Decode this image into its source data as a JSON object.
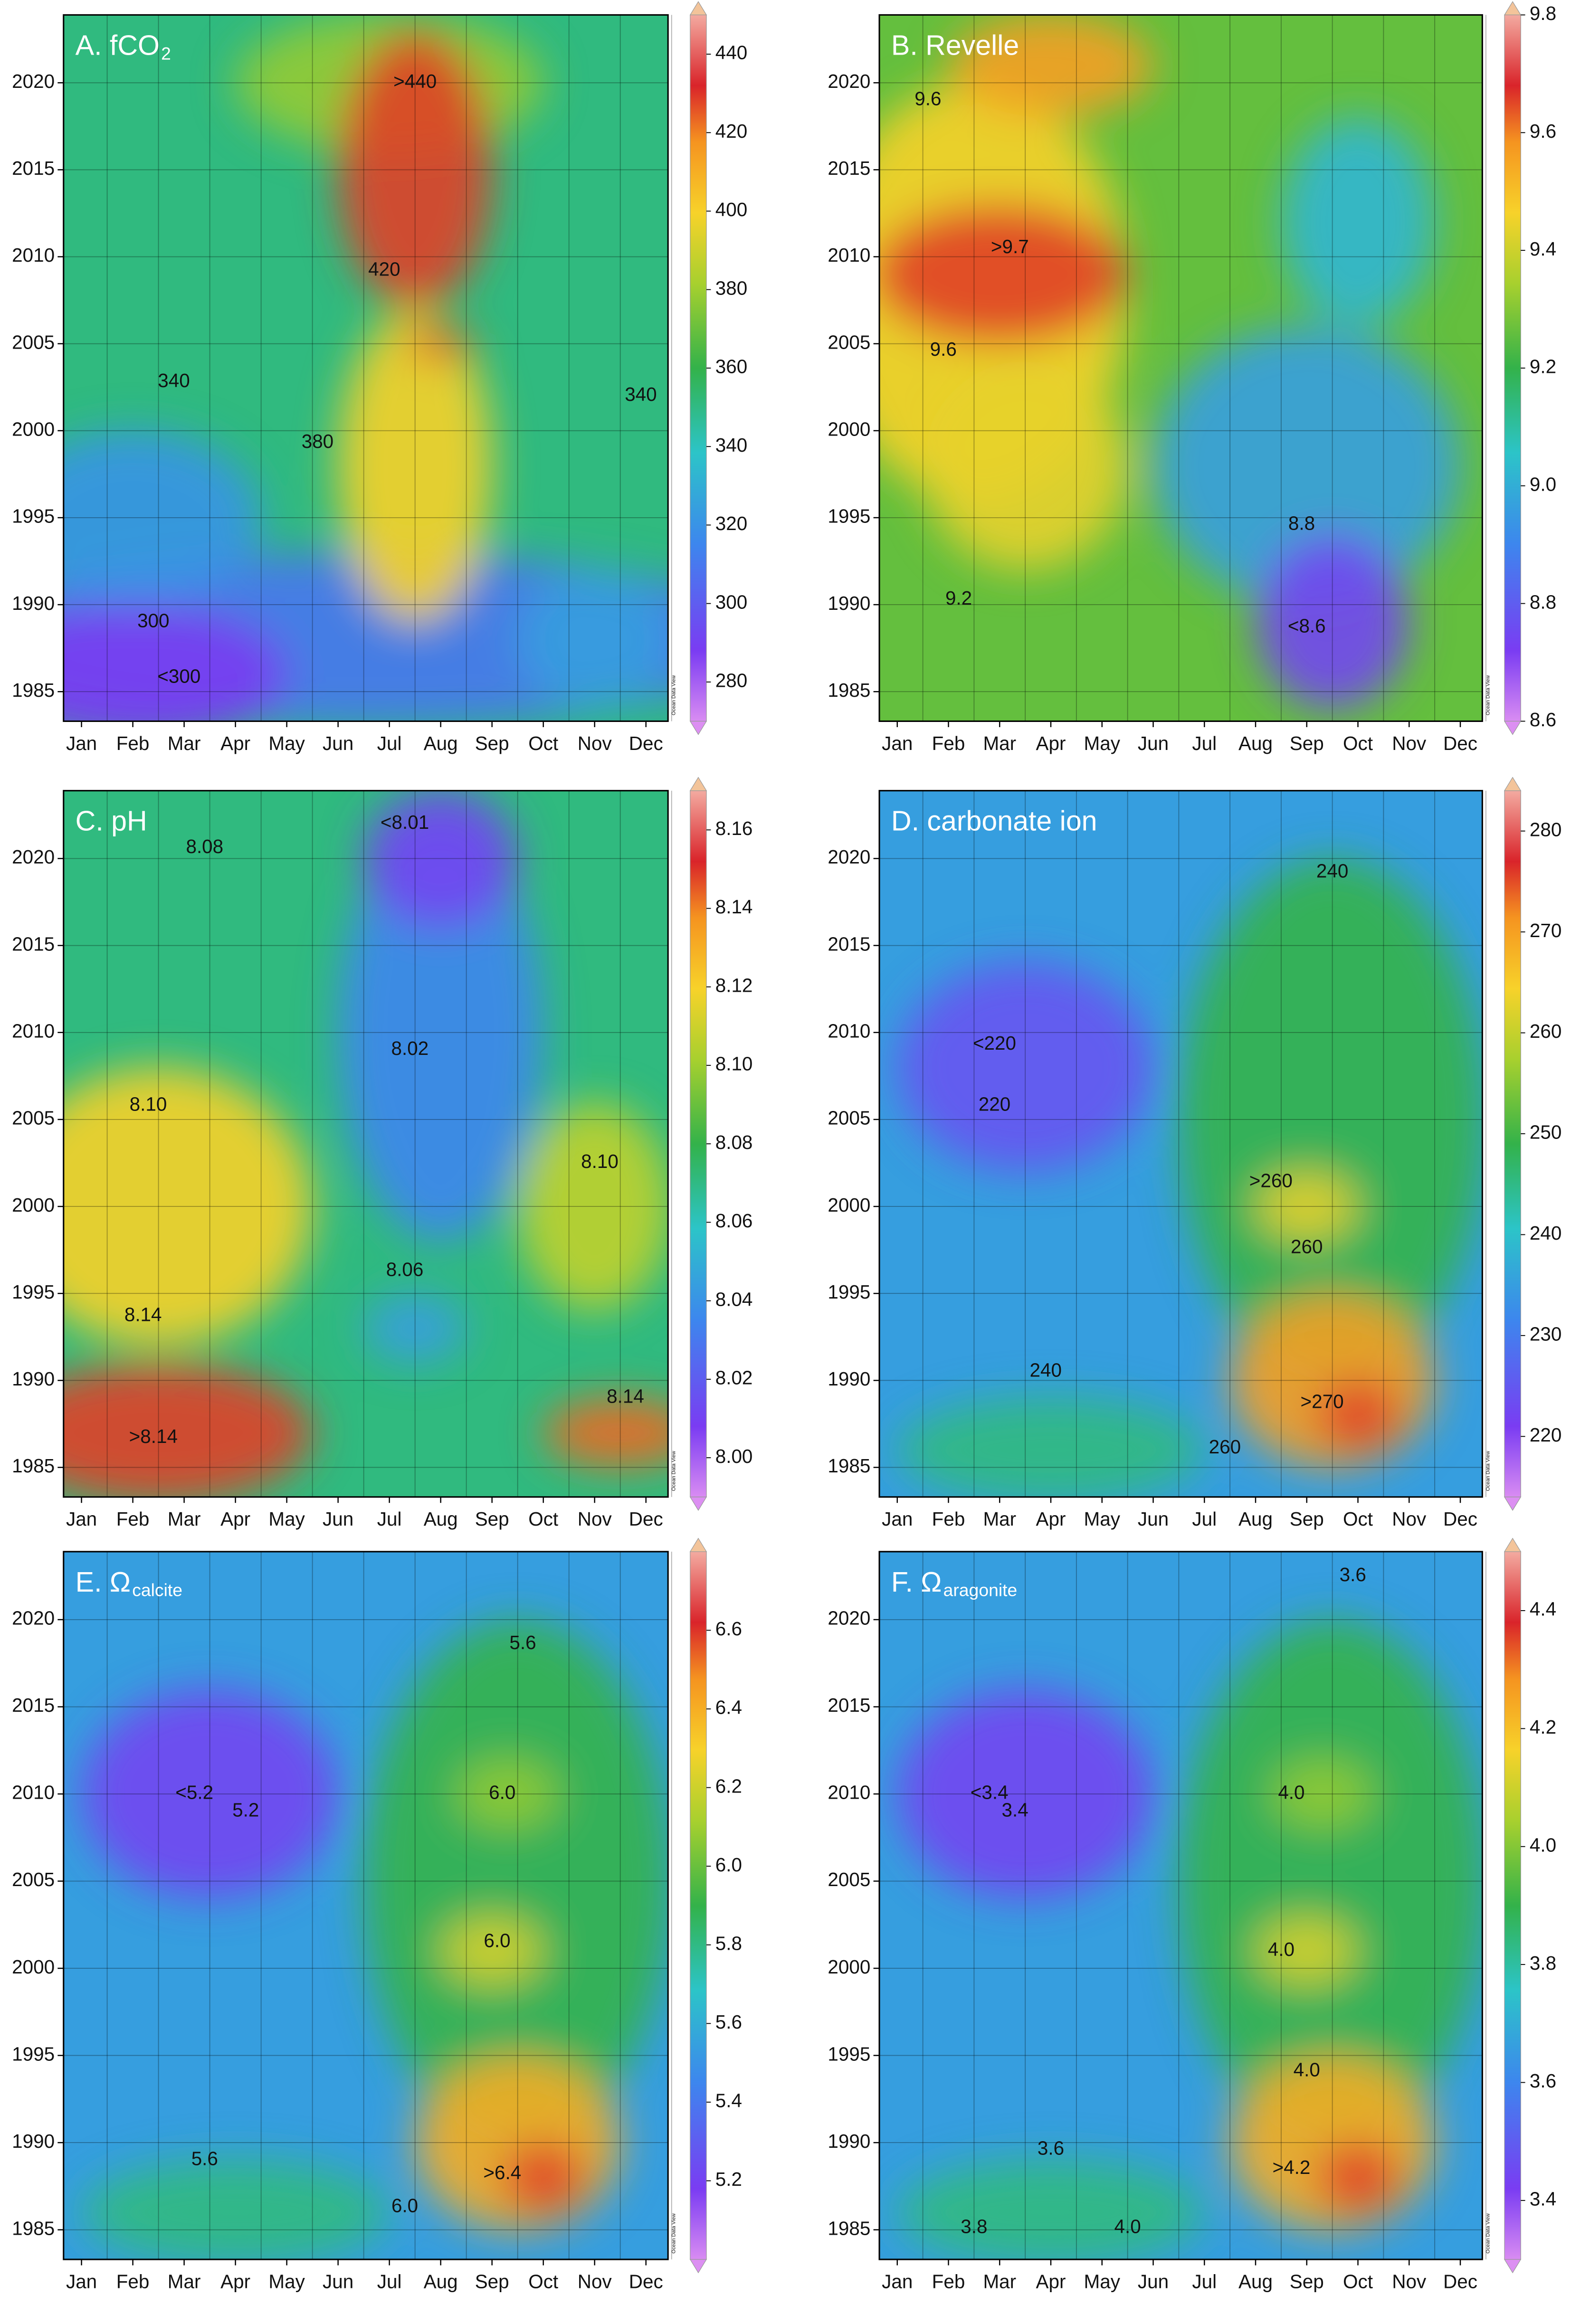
{
  "chart_data": [
    {
      "type": "heatmap",
      "title": "A. fCO",
      "title_sub": "2",
      "categories": [
        "Jan",
        "Feb",
        "Mar",
        "Apr",
        "May",
        "Jun",
        "Jul",
        "Aug",
        "Sep",
        "Oct",
        "Nov",
        "Dec"
      ],
      "ylim": [
        1983.3,
        2023.9
      ],
      "yticks": [
        1985,
        1990,
        1995,
        2000,
        2005,
        2010,
        2015,
        2020
      ],
      "zlim": [
        270,
        450
      ],
      "zticks": [
        280,
        300,
        320,
        340,
        360,
        380,
        400,
        420,
        440
      ],
      "watermark": "Ocean Data View",
      "annotations": [
        {
          "text": ">440",
          "x": 6.5,
          "y": 2020
        },
        {
          "text": "420",
          "x": 5.9,
          "y": 2009.2
        },
        {
          "text": "340",
          "x": 1.8,
          "y": 2002.8
        },
        {
          "text": "380",
          "x": 4.6,
          "y": 1999.3
        },
        {
          "text": "340",
          "x": 10.9,
          "y": 2002
        },
        {
          "text": "300",
          "x": 1.4,
          "y": 1989
        },
        {
          "text": "<300",
          "x": 1.9,
          "y": 1985.8
        }
      ]
    },
    {
      "type": "heatmap",
      "title": "B. Revelle",
      "categories": [
        "Jan",
        "Feb",
        "Mar",
        "Apr",
        "May",
        "Jun",
        "Jul",
        "Aug",
        "Sep",
        "Oct",
        "Nov",
        "Dec"
      ],
      "ylim": [
        1983.3,
        2023.9
      ],
      "yticks": [
        1985,
        1990,
        1995,
        2000,
        2005,
        2010,
        2015,
        2020
      ],
      "zlim": [
        8.6,
        9.8
      ],
      "zticks": [
        8.6,
        8.8,
        {
          "value": 9,
          "label": "9.0"
        },
        9.2,
        9.4,
        9.6,
        9.8
      ],
      "watermark": "Ocean Data View",
      "annotations": [
        {
          "text": "9.6",
          "x": 0.6,
          "y": 2019
        },
        {
          "text": ">9.7",
          "x": 2.2,
          "y": 2010.5
        },
        {
          "text": "9.6",
          "x": 0.9,
          "y": 2004.6
        },
        {
          "text": "8.8",
          "x": 7.9,
          "y": 1994.6
        },
        {
          "text": "9.2",
          "x": 1.2,
          "y": 1990.3
        },
        {
          "text": "<8.6",
          "x": 8.0,
          "y": 1988.7
        }
      ]
    },
    {
      "type": "heatmap",
      "title": "C. pH",
      "categories": [
        "Jan",
        "Feb",
        "Mar",
        "Apr",
        "May",
        "Jun",
        "Jul",
        "Aug",
        "Sep",
        "Oct",
        "Nov",
        "Dec"
      ],
      "ylim": [
        1983.3,
        2023.9
      ],
      "yticks": [
        1985,
        1990,
        1995,
        2000,
        2005,
        2010,
        2015,
        2020
      ],
      "zlim": [
        7.99,
        8.17
      ],
      "zticks": [
        {
          "value": 8,
          "label": "8.00"
        },
        8.02,
        8.04,
        8.06,
        8.08,
        {
          "value": 8.1,
          "label": "8.10"
        },
        8.12,
        8.14,
        8.16
      ],
      "watermark": "Ocean Data View",
      "annotations": [
        {
          "text": "<8.01",
          "x": 6.3,
          "y": 2022
        },
        {
          "text": "8.08",
          "x": 2.4,
          "y": 2020.6
        },
        {
          "text": "8.02",
          "x": 6.4,
          "y": 2009
        },
        {
          "text": "8.10",
          "x": 1.3,
          "y": 2005.8
        },
        {
          "text": "8.10",
          "x": 10.1,
          "y": 2002.5
        },
        {
          "text": "8.06",
          "x": 6.3,
          "y": 1996.3
        },
        {
          "text": "8.14",
          "x": 1.2,
          "y": 1993.7
        },
        {
          "text": "8.14",
          "x": 10.6,
          "y": 1989
        },
        {
          "text": ">8.14",
          "x": 1.4,
          "y": 1986.7
        }
      ]
    },
    {
      "type": "heatmap",
      "title": "D. carbonate ion",
      "categories": [
        "Jan",
        "Feb",
        "Mar",
        "Apr",
        "May",
        "Jun",
        "Jul",
        "Aug",
        "Sep",
        "Oct",
        "Nov",
        "Dec"
      ],
      "ylim": [
        1983.3,
        2023.9
      ],
      "yticks": [
        1985,
        1990,
        1995,
        2000,
        2005,
        2010,
        2015,
        2020
      ],
      "zlim": [
        214,
        284
      ],
      "zticks": [
        220,
        230,
        240,
        250,
        260,
        270,
        280
      ],
      "watermark": "Ocean Data View",
      "annotations": [
        {
          "text": "240",
          "x": 8.5,
          "y": 2019.2
        },
        {
          "text": "<220",
          "x": 1.9,
          "y": 2009.3
        },
        {
          "text": "220",
          "x": 1.9,
          "y": 2005.8
        },
        {
          "text": ">260",
          "x": 7.3,
          "y": 2001.4
        },
        {
          "text": "260",
          "x": 8,
          "y": 1997.6
        },
        {
          "text": "240",
          "x": 2.9,
          "y": 1990.5
        },
        {
          "text": ">270",
          "x": 8.3,
          "y": 1988.7
        },
        {
          "text": "260",
          "x": 6.4,
          "y": 1986.1
        }
      ]
    },
    {
      "type": "heatmap",
      "title": "E. Ω",
      "title_sub": "calcite",
      "categories": [
        "Jan",
        "Feb",
        "Mar",
        "Apr",
        "May",
        "Jun",
        "Jul",
        "Aug",
        "Sep",
        "Oct",
        "Nov",
        "Dec"
      ],
      "ylim": [
        1983.3,
        2023.9
      ],
      "yticks": [
        1985,
        1990,
        1995,
        2000,
        2005,
        2010,
        2015,
        2020
      ],
      "zlim": [
        5.0,
        6.8
      ],
      "zticks": [
        5.2,
        5.4,
        5.6,
        5.8,
        {
          "value": 6,
          "label": "6.0"
        },
        6.2,
        6.4,
        6.6
      ],
      "watermark": "Ocean Data View",
      "annotations": [
        {
          "text": "5.6",
          "x": 8.6,
          "y": 2018.6
        },
        {
          "text": "<5.2",
          "x": 2.2,
          "y": 2010
        },
        {
          "text": "5.2",
          "x": 3.2,
          "y": 2009
        },
        {
          "text": "6.0",
          "x": 8.2,
          "y": 2010
        },
        {
          "text": "6.0",
          "x": 8.1,
          "y": 2001.5
        },
        {
          "text": "5.6",
          "x": 2.4,
          "y": 1989
        },
        {
          "text": ">6.4",
          "x": 8.2,
          "y": 1988.2
        },
        {
          "text": "6.0",
          "x": 6.3,
          "y": 1986.3
        }
      ]
    },
    {
      "type": "heatmap",
      "title": "F. Ω",
      "title_sub": "aragonite",
      "categories": [
        "Jan",
        "Feb",
        "Mar",
        "Apr",
        "May",
        "Jun",
        "Jul",
        "Aug",
        "Sep",
        "Oct",
        "Nov",
        "Dec"
      ],
      "ylim": [
        1983.3,
        2023.9
      ],
      "yticks": [
        1985,
        1990,
        1995,
        2000,
        2005,
        2010,
        2015,
        2020
      ],
      "zlim": [
        3.3,
        4.5
      ],
      "zticks": [
        3.4,
        3.6,
        3.8,
        {
          "value": 4,
          "label": "4.0"
        },
        4.2,
        4.4
      ],
      "watermark": "Ocean Data View",
      "annotations": [
        {
          "text": "3.6",
          "x": 8.9,
          "y": 2022.5
        },
        {
          "text": "<3.4",
          "x": 1.8,
          "y": 2010
        },
        {
          "text": "3.4",
          "x": 2.3,
          "y": 2009
        },
        {
          "text": "4.0",
          "x": 7.7,
          "y": 2010
        },
        {
          "text": "4.0",
          "x": 7.5,
          "y": 2001
        },
        {
          "text": "4.0",
          "x": 8,
          "y": 1994.1
        },
        {
          "text": "3.6",
          "x": 3.0,
          "y": 1989.6
        },
        {
          "text": ">4.2",
          "x": 7.7,
          "y": 1988.5
        },
        {
          "text": "3.8",
          "x": 1.5,
          "y": 1985.1
        },
        {
          "text": "4.0",
          "x": 4.5,
          "y": 1985.1
        }
      ]
    }
  ]
}
